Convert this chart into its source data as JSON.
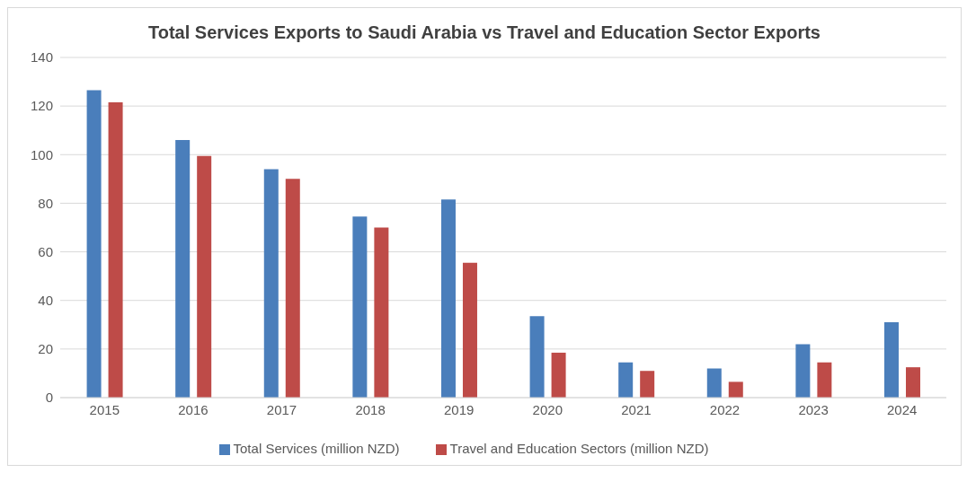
{
  "chart_data": {
    "type": "bar",
    "title": "Total Services Exports to Saudi Arabia vs Travel and Education Sector Exports",
    "categories": [
      "2015",
      "2016",
      "2017",
      "2018",
      "2019",
      "2020",
      "2021",
      "2022",
      "2023",
      "2024"
    ],
    "series": [
      {
        "name": "Total Services (million NZD)",
        "color": "#4a7ebb",
        "values": [
          126.5,
          106,
          94,
          74.5,
          81.5,
          33.5,
          14.5,
          12,
          22,
          31
        ]
      },
      {
        "name": "Travel and Education Sectors (million NZD)",
        "color": "#be4b48",
        "values": [
          121.5,
          99.5,
          90,
          70,
          55.5,
          18.5,
          11,
          6.5,
          14.5,
          12.5
        ]
      }
    ],
    "ylim": [
      0,
      140
    ],
    "yticks": [
      0,
      20,
      40,
      60,
      80,
      100,
      120,
      140
    ],
    "grid": "y",
    "legend": "bottom"
  }
}
